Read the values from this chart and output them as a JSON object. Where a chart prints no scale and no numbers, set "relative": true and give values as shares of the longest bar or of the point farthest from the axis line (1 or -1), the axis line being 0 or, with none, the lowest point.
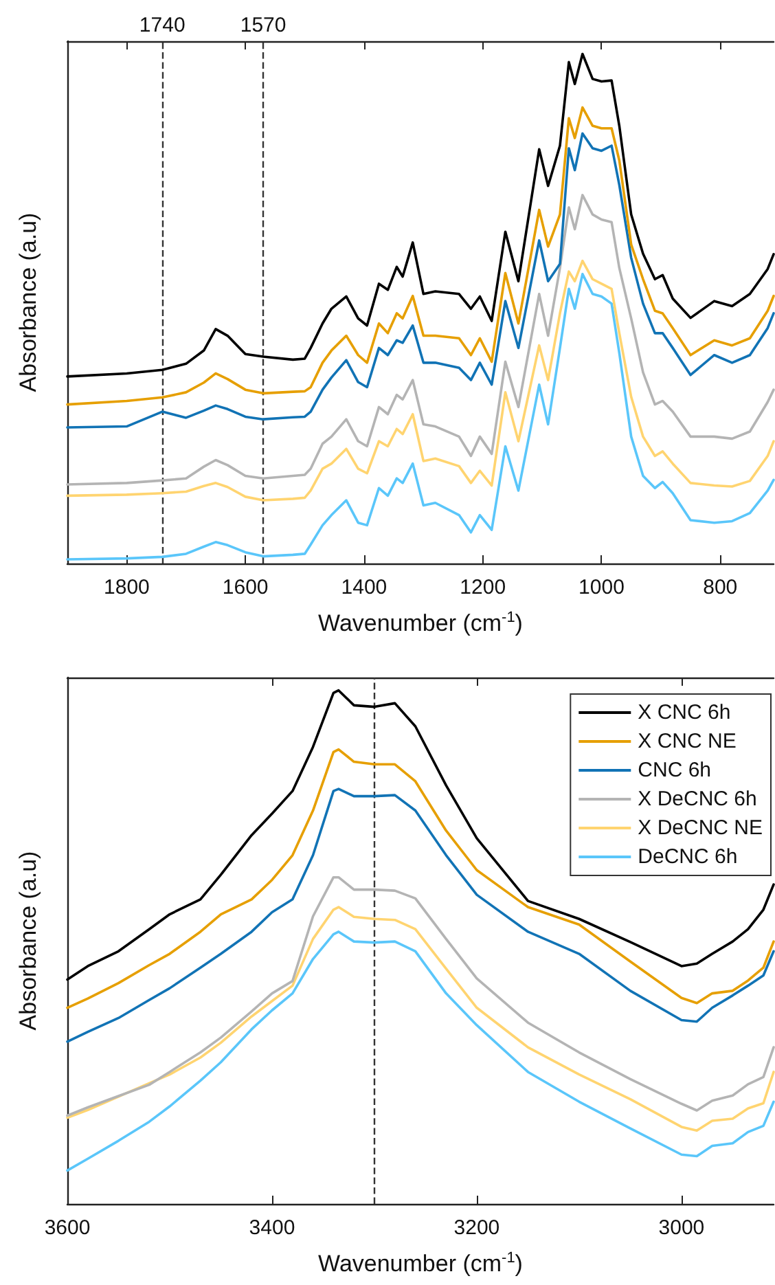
{
  "chart_data": [
    {
      "type": "line",
      "relative": true,
      "xlabel": "Wavenumber (cm$^{-1}$)",
      "ylabel": "Absorbance (a.u)",
      "xlim": [
        1900,
        710
      ],
      "xticks": [
        1800,
        1600,
        1400,
        1200,
        1000,
        800
      ],
      "x": [
        1900,
        1800,
        1740,
        1700,
        1670,
        1650,
        1630,
        1600,
        1570,
        1520,
        1500,
        1490,
        1470,
        1455,
        1430,
        1410,
        1395,
        1375,
        1360,
        1345,
        1335,
        1318,
        1300,
        1280,
        1240,
        1220,
        1205,
        1185,
        1162,
        1140,
        1105,
        1090,
        1070,
        1055,
        1045,
        1032,
        1015,
        1000,
        983,
        970,
        950,
        930,
        910,
        897,
        880,
        850,
        810,
        780,
        750,
        720,
        710
      ],
      "ref_lines": [
        {
          "axis": "x",
          "value": 1740,
          "label": "1740",
          "line_style": "dashed",
          "color": "#333333"
        },
        {
          "axis": "x",
          "value": 1570,
          "label": "1570",
          "line_style": "dashed",
          "color": "#333333"
        }
      ],
      "series": [
        {
          "color": "#000000",
          "values": [
            0.367,
            0.373,
            0.38,
            0.392,
            0.418,
            0.46,
            0.447,
            0.411,
            0.406,
            0.4,
            0.402,
            0.423,
            0.471,
            0.5,
            0.524,
            0.481,
            0.467,
            0.549,
            0.537,
            0.582,
            0.563,
            0.63,
            0.529,
            0.534,
            0.529,
            0.5,
            0.524,
            0.476,
            0.651,
            0.554,
            0.813,
            0.741,
            0.82,
            0.984,
            0.941,
            1,
            0.951,
            0.946,
            0.948,
            0.859,
            0.685,
            0.608,
            0.558,
            0.566,
            0.52,
            0.482,
            0.515,
            0.505,
            0.529,
            0.578,
            0.607
          ]
        },
        {
          "color": "#e69f00",
          "values": [
            0.312,
            0.319,
            0.326,
            0.336,
            0.355,
            0.373,
            0.362,
            0.341,
            0.334,
            0.337,
            0.338,
            0.346,
            0.394,
            0.418,
            0.447,
            0.409,
            0.394,
            0.471,
            0.452,
            0.491,
            0.481,
            0.525,
            0.447,
            0.447,
            0.442,
            0.409,
            0.442,
            0.396,
            0.57,
            0.471,
            0.694,
            0.622,
            0.685,
            0.874,
            0.835,
            0.895,
            0.859,
            0.854,
            0.854,
            0.791,
            0.626,
            0.558,
            0.496,
            0.491,
            0.462,
            0.409,
            0.438,
            0.428,
            0.442,
            0.496,
            0.525
          ]
        },
        {
          "color": "#1173b5",
          "values": [
            0.267,
            0.269,
            0.298,
            0.286,
            0.3,
            0.31,
            0.303,
            0.288,
            0.283,
            0.287,
            0.288,
            0.298,
            0.341,
            0.365,
            0.399,
            0.356,
            0.346,
            0.423,
            0.409,
            0.438,
            0.433,
            0.467,
            0.394,
            0.394,
            0.384,
            0.36,
            0.394,
            0.351,
            0.515,
            0.423,
            0.634,
            0.554,
            0.588,
            0.815,
            0.772,
            0.844,
            0.815,
            0.81,
            0.82,
            0.743,
            0.6,
            0.51,
            0.452,
            0.452,
            0.423,
            0.37,
            0.409,
            0.394,
            0.409,
            0.462,
            0.491
          ]
        },
        {
          "color": "#b4b4b4",
          "values": [
            0.155,
            0.158,
            0.163,
            0.167,
            0.19,
            0.203,
            0.193,
            0.172,
            0.167,
            0.172,
            0.174,
            0.186,
            0.235,
            0.249,
            0.283,
            0.24,
            0.23,
            0.307,
            0.293,
            0.331,
            0.322,
            0.36,
            0.273,
            0.269,
            0.249,
            0.211,
            0.249,
            0.215,
            0.396,
            0.307,
            0.529,
            0.447,
            0.58,
            0.699,
            0.656,
            0.723,
            0.685,
            0.675,
            0.67,
            0.58,
            0.481,
            0.375,
            0.312,
            0.319,
            0.298,
            0.249,
            0.249,
            0.245,
            0.259,
            0.317,
            0.341
          ]
        },
        {
          "color": "#ffd470",
          "values": [
            0.133,
            0.135,
            0.138,
            0.141,
            0.152,
            0.158,
            0.15,
            0.131,
            0.124,
            0.127,
            0.129,
            0.143,
            0.186,
            0.196,
            0.225,
            0.186,
            0.177,
            0.24,
            0.23,
            0.264,
            0.254,
            0.293,
            0.201,
            0.206,
            0.191,
            0.158,
            0.182,
            0.153,
            0.336,
            0.24,
            0.428,
            0.36,
            0.491,
            0.573,
            0.554,
            0.594,
            0.558,
            0.549,
            0.539,
            0.452,
            0.327,
            0.249,
            0.211,
            0.22,
            0.196,
            0.158,
            0.153,
            0.151,
            0.162,
            0.211,
            0.24
          ]
        },
        {
          "color": "#5ac6fa",
          "values": [
            0.008,
            0.01,
            0.013,
            0.019,
            0.033,
            0.042,
            0.036,
            0.022,
            0.014,
            0.017,
            0.019,
            0.037,
            0.075,
            0.095,
            0.124,
            0.08,
            0.075,
            0.148,
            0.133,
            0.167,
            0.158,
            0.196,
            0.114,
            0.119,
            0.095,
            0.061,
            0.095,
            0.066,
            0.23,
            0.143,
            0.351,
            0.273,
            0.423,
            0.539,
            0.5,
            0.568,
            0.529,
            0.524,
            0.51,
            0.413,
            0.249,
            0.172,
            0.148,
            0.16,
            0.138,
            0.085,
            0.08,
            0.083,
            0.099,
            0.143,
            0.164
          ]
        }
      ]
    },
    {
      "type": "line",
      "relative": true,
      "xlabel": "Wavenumber (cm$^{-1}$)",
      "ylabel": "Absorbance (a.u)",
      "xlim": [
        3600,
        2910
      ],
      "xticks": [
        3600,
        3400,
        3200,
        3000
      ],
      "legend": "top right",
      "x": [
        3600,
        3580,
        3550,
        3520,
        3500,
        3470,
        3450,
        3420,
        3400,
        3380,
        3360,
        3340,
        3335,
        3320,
        3300,
        3280,
        3260,
        3230,
        3200,
        3150,
        3100,
        3050,
        3000,
        2985,
        2970,
        2950,
        2935,
        2920,
        2910
      ],
      "ref_lines": [
        {
          "axis": "x",
          "value": 3300,
          "line_style": "dashed",
          "color": "#333333"
        }
      ],
      "series": [
        {
          "name": "X CNC 6h",
          "color": "#000000",
          "values": [
            0.437,
            0.463,
            0.492,
            0.535,
            0.564,
            0.593,
            0.641,
            0.718,
            0.76,
            0.804,
            0.89,
            0.995,
            1,
            0.971,
            0.968,
            0.975,
            0.93,
            0.815,
            0.712,
            0.59,
            0.555,
            0.51,
            0.463,
            0.468,
            0.487,
            0.511,
            0.535,
            0.573,
            0.622
          ]
        },
        {
          "name": "X CNC NE",
          "color": "#e69f00",
          "values": [
            0.382,
            0.4,
            0.43,
            0.465,
            0.487,
            0.53,
            0.564,
            0.593,
            0.631,
            0.679,
            0.766,
            0.88,
            0.885,
            0.861,
            0.856,
            0.856,
            0.823,
            0.727,
            0.65,
            0.578,
            0.544,
            0.472,
            0.401,
            0.391,
            0.41,
            0.415,
            0.435,
            0.46,
            0.511
          ]
        },
        {
          "name": "CNC 6h",
          "color": "#1173b5",
          "values": [
            0.316,
            0.335,
            0.362,
            0.397,
            0.42,
            0.46,
            0.487,
            0.53,
            0.568,
            0.593,
            0.679,
            0.804,
            0.808,
            0.794,
            0.794,
            0.796,
            0.766,
            0.679,
            0.602,
            0.53,
            0.487,
            0.415,
            0.358,
            0.355,
            0.382,
            0.406,
            0.425,
            0.445,
            0.492
          ]
        },
        {
          "name": "X DeCNC 6h",
          "color": "#b4b4b4",
          "values": [
            0.172,
            0.188,
            0.21,
            0.232,
            0.257,
            0.295,
            0.324,
            0.375,
            0.41,
            0.434,
            0.56,
            0.636,
            0.636,
            0.612,
            0.612,
            0.61,
            0.595,
            0.516,
            0.439,
            0.353,
            0.295,
            0.243,
            0.195,
            0.182,
            0.201,
            0.211,
            0.233,
            0.247,
            0.305
          ]
        },
        {
          "name": "X DeCNC NE",
          "color": "#ffd470",
          "values": [
            0.168,
            0.183,
            0.209,
            0.235,
            0.252,
            0.285,
            0.314,
            0.365,
            0.395,
            0.425,
            0.516,
            0.573,
            0.578,
            0.559,
            0.555,
            0.553,
            0.535,
            0.458,
            0.382,
            0.305,
            0.252,
            0.204,
            0.15,
            0.143,
            0.162,
            0.166,
            0.186,
            0.196,
            0.257
          ]
        },
        {
          "name": "DeCNC 6h",
          "color": "#5ac6fa",
          "values": [
            0.065,
            0.088,
            0.123,
            0.16,
            0.19,
            0.24,
            0.276,
            0.34,
            0.377,
            0.41,
            0.477,
            0.525,
            0.53,
            0.511,
            0.509,
            0.511,
            0.492,
            0.41,
            0.348,
            0.257,
            0.199,
            0.147,
            0.096,
            0.093,
            0.113,
            0.118,
            0.14,
            0.152,
            0.199
          ]
        }
      ]
    }
  ]
}
